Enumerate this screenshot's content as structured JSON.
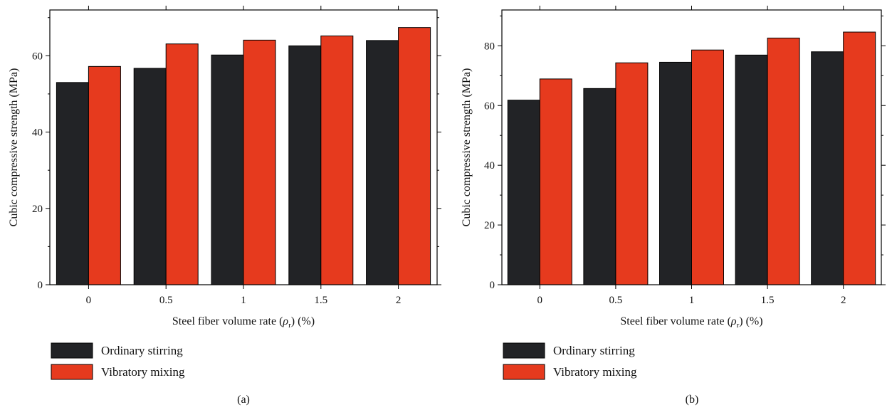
{
  "chart_data": [
    {
      "type": "bar",
      "panel_label": "(a)",
      "categories": [
        "0",
        "0.5",
        "1",
        "1.5",
        "2"
      ],
      "series": [
        {
          "name": "Ordinary stirring",
          "values": [
            53.0,
            56.7,
            60.2,
            62.6,
            64.0
          ],
          "color": "#222326"
        },
        {
          "name": "Vibratory mixing",
          "values": [
            57.2,
            63.1,
            64.1,
            65.2,
            67.4
          ],
          "color": "#e63a1e"
        }
      ],
      "xlabel": {
        "pre": "Steel fiber volume rate (",
        "symbol": "ρ",
        "sub": "r",
        "post": ") (%)"
      },
      "ylabel": "Cubic compressive strength (MPa)",
      "ylim": [
        0,
        72
      ],
      "yticks": [
        0,
        20,
        40,
        60
      ],
      "grid": false,
      "legend_position": "bottom-left"
    },
    {
      "type": "bar",
      "panel_label": "(b)",
      "categories": [
        "0",
        "0.5",
        "1",
        "1.5",
        "2"
      ],
      "series": [
        {
          "name": "Ordinary stirring",
          "values": [
            61.8,
            65.7,
            74.5,
            76.9,
            78.0
          ],
          "color": "#222326"
        },
        {
          "name": "Vibratory mixing",
          "values": [
            68.9,
            74.3,
            78.6,
            82.6,
            84.6
          ],
          "color": "#e63a1e"
        }
      ],
      "xlabel": {
        "pre": "Steel fiber volume rate (",
        "symbol": "ρ",
        "sub": "r",
        "post": ") (%)"
      },
      "ylabel": "Cubic compressive strength (MPa)",
      "ylim": [
        0,
        92
      ],
      "yticks": [
        0,
        20,
        40,
        60,
        80
      ],
      "grid": false,
      "legend_position": "bottom-left"
    }
  ]
}
